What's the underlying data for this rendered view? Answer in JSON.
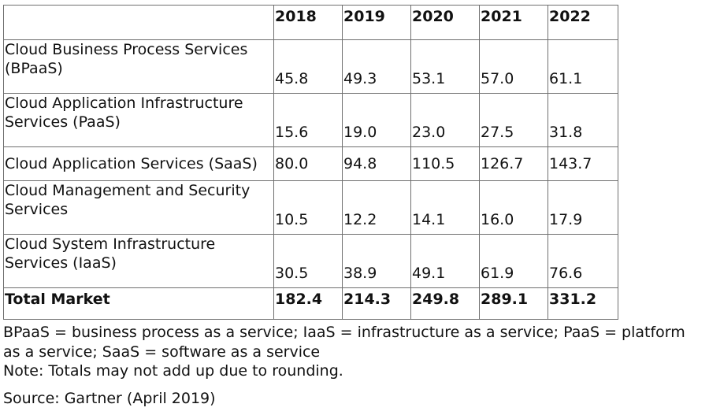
{
  "chart_data": {
    "type": "table",
    "columns": [
      "",
      "2018",
      "2019",
      "2020",
      "2021",
      "2022"
    ],
    "rows": [
      {
        "label": "Cloud Business Process Services (BPaaS)",
        "values": [
          "45.8",
          "49.3",
          "53.1",
          "57.0",
          "61.1"
        ]
      },
      {
        "label": "Cloud Application Infrastructure Services (PaaS)",
        "values": [
          "15.6",
          "19.0",
          "23.0",
          "27.5",
          "31.8"
        ]
      },
      {
        "label": "Cloud Application Services (SaaS)",
        "values": [
          "80.0",
          "94.8",
          "110.5",
          "126.7",
          "143.7"
        ]
      },
      {
        "label": "Cloud Management and Security Services",
        "values": [
          "10.5",
          "12.2",
          "14.1",
          "16.0",
          "17.9"
        ]
      },
      {
        "label": "Cloud System Infrastructure Services (IaaS)",
        "values": [
          "30.5",
          "38.9",
          "49.1",
          "61.9",
          "76.6"
        ]
      }
    ],
    "total": {
      "label": "Total Market",
      "values": [
        "182.4",
        "214.3",
        "249.8",
        "289.1",
        "331.2"
      ]
    }
  },
  "notes": {
    "abbreviations": "BPaaS = business process as a service; IaaS = infrastructure as a service; PaaS = platform as a service; SaaS = software as a service",
    "rounding": "Note: Totals may not add up due to rounding.",
    "source": "Source: Gartner (April 2019)"
  }
}
